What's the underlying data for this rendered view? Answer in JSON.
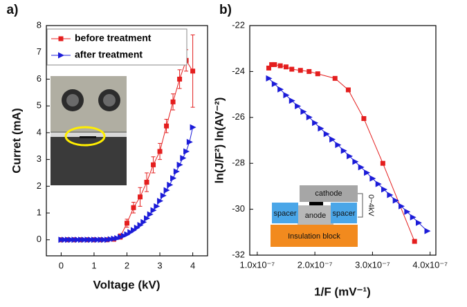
{
  "chart_data": [
    {
      "type": "line",
      "panel": "a)",
      "xlabel": "Voltage (kV)",
      "ylabel": "Curret (mA)",
      "xlim": [
        -0.45,
        4.45
      ],
      "xticks": [
        0,
        1,
        2,
        3,
        4
      ],
      "ylim": [
        -0.6,
        8
      ],
      "yticks": [
        0,
        1,
        2,
        3,
        4,
        5,
        6,
        7,
        8
      ],
      "legend": "upper left",
      "series": [
        {
          "name": "before treatment",
          "color": "#e41e1e",
          "marker": "square",
          "x": [
            0,
            0.2,
            0.4,
            0.6,
            0.8,
            1.0,
            1.2,
            1.4,
            1.6,
            1.8,
            2.0,
            2.2,
            2.4,
            2.6,
            2.8,
            3.0,
            3.2,
            3.4,
            3.6,
            3.8,
            4.0
          ],
          "values": [
            0,
            0,
            0,
            0,
            0,
            0,
            0,
            0,
            0.02,
            0.12,
            0.62,
            1.2,
            1.6,
            2.15,
            2.8,
            3.3,
            4.25,
            5.15,
            6.0,
            6.7,
            6.3
          ],
          "errors": [
            0,
            0,
            0,
            0,
            0,
            0,
            0,
            0,
            0.05,
            0.1,
            0.15,
            0.2,
            0.35,
            0.35,
            0.3,
            0.3,
            0.25,
            0.3,
            0.35,
            0.4,
            1.35
          ]
        },
        {
          "name": "after treatment",
          "color": "#1c1cd8",
          "marker": "triangle-right",
          "x": [
            0,
            0.1,
            0.2,
            0.3,
            0.4,
            0.5,
            0.6,
            0.7,
            0.8,
            0.9,
            1.0,
            1.1,
            1.2,
            1.3,
            1.4,
            1.5,
            1.6,
            1.7,
            1.8,
            1.9,
            2.0,
            2.1,
            2.2,
            2.3,
            2.4,
            2.5,
            2.6,
            2.7,
            2.8,
            2.9,
            3.0,
            3.1,
            3.2,
            3.3,
            3.4,
            3.5,
            3.6,
            3.7,
            3.8,
            3.9,
            4.0
          ],
          "values": [
            0,
            0,
            0,
            0,
            0,
            0,
            0,
            0,
            0,
            0,
            0,
            0,
            0,
            0,
            0,
            0.02,
            0.04,
            0.06,
            0.1,
            0.15,
            0.2,
            0.28,
            0.36,
            0.45,
            0.55,
            0.66,
            0.8,
            0.95,
            1.1,
            1.25,
            1.45,
            1.65,
            1.85,
            2.05,
            2.3,
            2.55,
            2.8,
            3.05,
            3.3,
            3.65,
            4.2
          ]
        }
      ]
    },
    {
      "type": "line",
      "panel": "b)",
      "xlabel": "1/F (mV⁻¹)",
      "ylabel": "ln(J/F²) ln(AV⁻²)",
      "xlim": [
        8.7e-08,
        4.1e-07
      ],
      "xticks": [
        {
          "value": 1e-07,
          "label": "1.0x10⁻⁷"
        },
        {
          "value": 2e-07,
          "label": "2.0x10⁻⁷"
        },
        {
          "value": 3e-07,
          "label": "3.0x10⁻⁷"
        },
        {
          "value": 4e-07,
          "label": "4.0x10⁻⁷"
        }
      ],
      "ylim": [
        -32,
        -22
      ],
      "yticks": [
        -32,
        -30,
        -28,
        -26,
        -24,
        -22
      ],
      "annotations": [
        "cathode",
        "anode",
        "spacer",
        "spacer",
        "Insulation block",
        "0~4kV"
      ],
      "series": [
        {
          "color": "#e41e1e",
          "marker": "square",
          "x": [
            1.2e-07,
            1.25e-07,
            1.3e-07,
            1.4e-07,
            1.5e-07,
            1.6e-07,
            1.75e-07,
            1.9e-07,
            2.05e-07,
            2.35e-07,
            2.58e-07,
            2.85e-07,
            3.18e-07,
            3.73e-07
          ],
          "values": [
            -23.85,
            -23.7,
            -23.7,
            -23.75,
            -23.8,
            -23.9,
            -23.95,
            -24.0,
            -24.1,
            -24.3,
            -24.8,
            -26.05,
            -28.0,
            -31.4
          ]
        },
        {
          "color": "#1c1cd8",
          "marker": "triangle-right",
          "x": [
            1.2e-07,
            1.3e-07,
            1.4e-07,
            1.5e-07,
            1.6e-07,
            1.7e-07,
            1.8e-07,
            1.9e-07,
            2e-07,
            2.1e-07,
            2.2e-07,
            2.3e-07,
            2.4e-07,
            2.5e-07,
            2.6e-07,
            2.7e-07,
            2.8e-07,
            2.9e-07,
            3e-07,
            3.1e-07,
            3.2e-07,
            3.3e-07,
            3.4e-07,
            3.5e-07,
            3.6e-07,
            3.7e-07,
            3.8e-07,
            3.95e-07
          ],
          "values": [
            -24.3,
            -24.54,
            -24.78,
            -25.03,
            -25.27,
            -25.51,
            -25.75,
            -25.99,
            -26.24,
            -26.48,
            -26.72,
            -26.96,
            -27.2,
            -27.45,
            -27.69,
            -27.93,
            -28.17,
            -28.41,
            -28.66,
            -28.9,
            -29.14,
            -29.38,
            -29.62,
            -29.87,
            -30.11,
            -30.35,
            -30.59,
            -30.95
          ]
        }
      ]
    }
  ]
}
